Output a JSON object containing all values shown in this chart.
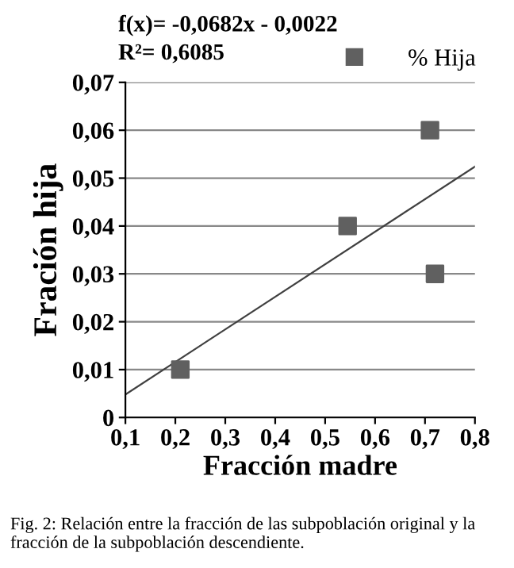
{
  "chart_data": {
    "type": "scatter",
    "xlabel": "Fracción madre",
    "ylabel": "Fración hija",
    "series": [
      {
        "name": "% Hija",
        "color": "#606060",
        "marker": "square",
        "x": [
          0.21,
          0.545,
          0.71,
          0.72
        ],
        "values": [
          0.01,
          0.04,
          0.06,
          0.03
        ]
      },
      {
        "type": "line",
        "color": "#404040",
        "x": [
          0.1,
          0.8
        ],
        "values": [
          0.0048,
          0.0524
        ]
      }
    ],
    "xlim": [
      0.1,
      0.8
    ],
    "xticks": [
      {
        "value": 0.1,
        "label": "0,1"
      },
      {
        "value": 0.2,
        "label": "0,2"
      },
      {
        "value": 0.3,
        "label": "0,3"
      },
      {
        "value": 0.4,
        "label": "0,4"
      },
      {
        "value": 0.5,
        "label": "0,5"
      },
      {
        "value": 0.6,
        "label": "0,6"
      },
      {
        "value": 0.7,
        "label": "0,7"
      },
      {
        "value": 0.8,
        "label": "0,8"
      }
    ],
    "ylim": [
      0,
      0.07
    ],
    "yticks": [
      0,
      {
        "value": 0.01,
        "label": "0,01"
      },
      {
        "value": 0.02,
        "label": "0,02"
      },
      {
        "value": 0.03,
        "label": "0,03"
      },
      {
        "value": 0.04,
        "label": "0,04"
      },
      {
        "value": 0.05,
        "label": "0,05"
      },
      {
        "value": 0.06,
        "label": "0,06"
      },
      {
        "value": 0.07,
        "label": "0,07"
      }
    ],
    "grid": "y",
    "legend": "top right",
    "annotations": [
      "f(x)= -0,0682x - 0,0022",
      "R²= 0,6085",
      "Fig. 2: Relación entre la fracción de las subpoblación original y la fracción de la subpoblación descendiente."
    ]
  }
}
